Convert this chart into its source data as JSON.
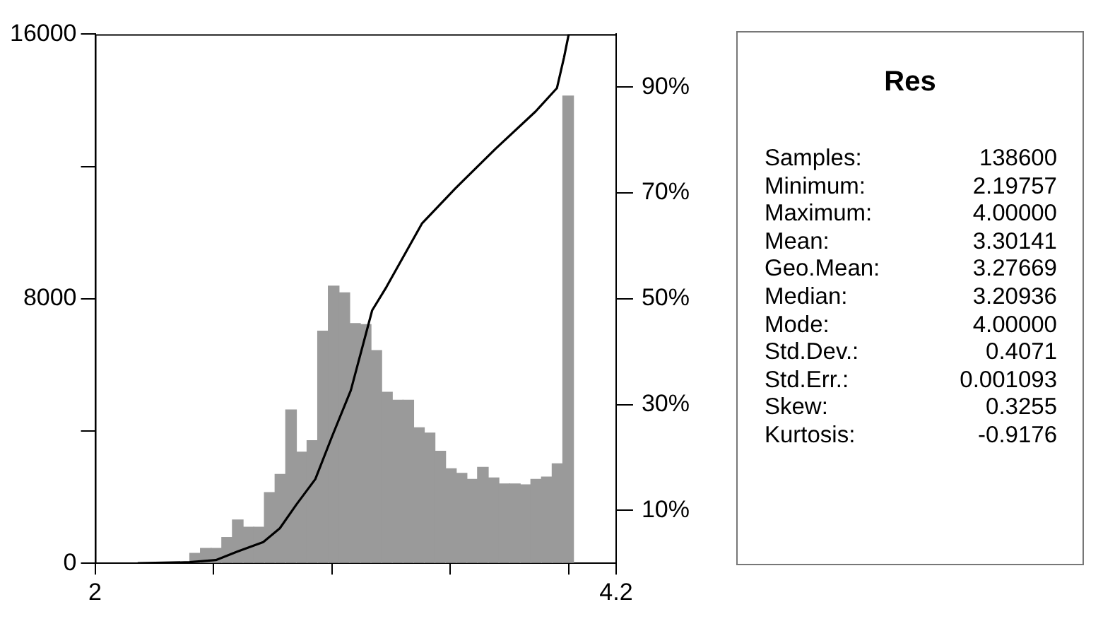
{
  "chart_data": [
    {
      "type": "histogram",
      "color": "#9a9a9a",
      "bins": [
        2.4,
        2.445,
        2.49,
        2.535,
        2.58,
        2.625,
        2.67,
        2.715,
        2.76,
        2.805,
        2.85,
        2.895,
        2.94,
        2.985,
        3.03,
        3.075,
        3.12,
        3.165,
        3.21,
        3.255,
        3.3,
        3.345,
        3.39,
        3.435,
        3.48,
        3.525,
        3.57,
        3.615,
        3.66,
        3.705,
        3.75,
        3.795,
        3.84,
        3.885,
        3.93,
        3.975,
        4.02
      ],
      "values": [
        300,
        450,
        450,
        780,
        1310,
        1090,
        1090,
        2140,
        2690,
        4640,
        3360,
        3710,
        7020,
        8380,
        8180,
        7250,
        7220,
        6430,
        5170,
        4930,
        4930,
        4100,
        3940,
        3390,
        2860,
        2720,
        2540,
        2900,
        2580,
        2400,
        2400,
        2370,
        2540,
        2610,
        3010,
        14130
      ],
      "ylim": [
        0,
        16000
      ],
      "yticks": [
        0,
        {
          "value": 4000,
          "label": null
        },
        8000,
        {
          "value": 12000,
          "label": null
        },
        16000
      ],
      "series": [
        {
          "type": "line",
          "axis": "y2",
          "color": "#000000",
          "x": [
            2.18,
            2.4,
            2.51,
            2.6,
            2.71,
            2.78,
            2.85,
            2.93,
            3.0,
            3.08,
            3.17,
            3.23,
            3.38,
            3.52,
            3.69,
            3.86,
            3.95,
            3.98,
            4.0,
            4.2
          ],
          "values": [
            0,
            0.2,
            0.6,
            2.2,
            4,
            6.6,
            11.1,
            15.9,
            23.9,
            32.7,
            47.8,
            52.2,
            64.2,
            70.8,
            78.3,
            85.4,
            89.8,
            95.6,
            100,
            100
          ]
        }
      ],
      "marker": "none",
      "line_style": "solid",
      "grid": false,
      "legend": false,
      "xlim": [
        2,
        4.2
      ],
      "xticks": [
        2,
        {
          "value": 2.5,
          "label": null
        },
        {
          "value": 3,
          "label": null
        },
        {
          "value": 3.5,
          "label": null
        },
        {
          "value": 4,
          "label": null
        },
        4.2
      ],
      "y2lim": [
        0,
        100
      ],
      "y2ticks": [
        {
          "value": 10,
          "label": "10%"
        },
        {
          "value": 30,
          "label": "30%"
        },
        {
          "value": 50,
          "label": "50%"
        },
        {
          "value": 70,
          "label": "70%"
        },
        {
          "value": 90,
          "label": "90%"
        }
      ]
    },
    {
      "type": "other",
      "title": "Res",
      "annotations": [
        "Samples:",
        "138600",
        "Minimum:",
        "2.19757",
        "Maximum:",
        "4.00000",
        "Mean:",
        "3.30141",
        "Geo.Mean:",
        "3.27669",
        "Median:",
        "3.20936",
        "Mode:",
        "4.00000",
        "Std.Dev.:",
        "0.4071",
        "Std.Err.:",
        "0.001093",
        "Skew:",
        "0.3255",
        "Kurtosis:",
        "-0.9176"
      ]
    }
  ]
}
